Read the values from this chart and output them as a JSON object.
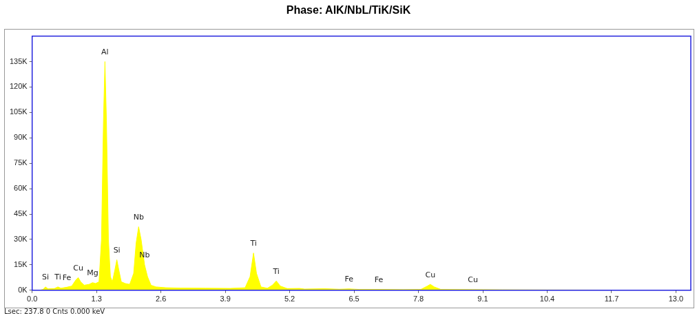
{
  "chart_data": {
    "type": "area",
    "title": "Phase: AlK/NbL/TiK/SiK",
    "color": "#ffff00",
    "x": [
      0.0,
      0.15,
      0.22,
      0.27,
      0.32,
      0.45,
      0.52,
      0.58,
      0.7,
      0.8,
      0.88,
      0.93,
      0.98,
      1.05,
      1.15,
      1.22,
      1.28,
      1.35,
      1.4,
      1.44,
      1.47,
      1.5,
      1.54,
      1.58,
      1.62,
      1.67,
      1.71,
      1.75,
      1.8,
      1.88,
      1.97,
      2.05,
      2.1,
      2.15,
      2.2,
      2.27,
      2.33,
      2.4,
      2.5,
      2.7,
      3.0,
      3.5,
      4.0,
      4.3,
      4.4,
      4.47,
      4.53,
      4.62,
      4.75,
      4.85,
      4.93,
      5.01,
      5.15,
      5.4,
      5.5,
      5.9,
      6.2,
      6.4,
      6.6,
      7.0,
      7.5,
      7.85,
      7.98,
      8.04,
      8.12,
      8.25,
      8.9,
      9.5,
      10.5,
      12.0,
      13.3
    ],
    "values": [
      0,
      0,
      500,
      2000,
      800,
      1000,
      2000,
      1200,
      1800,
      2500,
      6000,
      7500,
      5000,
      3000,
      3500,
      4500,
      4000,
      5000,
      30000,
      100000,
      135000,
      100000,
      30000,
      8000,
      5000,
      12000,
      18000,
      12000,
      5000,
      4000,
      3500,
      10000,
      28000,
      37500,
      30000,
      15000,
      8000,
      3000,
      2000,
      1500,
      1300,
      1200,
      1100,
      1500,
      8000,
      22000,
      10000,
      2000,
      1200,
      3000,
      5500,
      2500,
      1000,
      1100,
      700,
      900,
      600,
      800,
      500,
      500,
      400,
      500,
      2500,
      3500,
      2000,
      500,
      400,
      300,
      200,
      100,
      100
    ],
    "xlim": [
      0,
      13.3
    ],
    "xticks": [
      {
        "value": 0,
        "label": "0.0"
      },
      1.3,
      2.6,
      3.9,
      5.2,
      6.5,
      7.8,
      9.1,
      10.4,
      11.7,
      {
        "value": 13,
        "label": "13.0"
      }
    ],
    "ylim": [
      0,
      150000
    ],
    "yticks": [
      {
        "value": 0,
        "label": "0K"
      },
      {
        "value": 15000,
        "label": "15K"
      },
      {
        "value": 30000,
        "label": "30K"
      },
      {
        "value": 45000,
        "label": "45K"
      },
      {
        "value": 60000,
        "label": "60K"
      },
      {
        "value": 75000,
        "label": "75K"
      },
      {
        "value": 90000,
        "label": "90K"
      },
      {
        "value": 105000,
        "label": "105K"
      },
      {
        "value": 120000,
        "label": "120K"
      },
      {
        "value": 135000,
        "label": "135K"
      }
    ],
    "grid": false,
    "legend": false,
    "annotations": [
      {
        "text": "Si",
        "x": 0.27,
        "y": 2000
      },
      {
        "text": "Ti",
        "x": 0.52,
        "y": 2000
      },
      {
        "text": "Fe",
        "x": 0.7,
        "y": 1800
      },
      {
        "text": "Cu",
        "x": 0.93,
        "y": 7500
      },
      {
        "text": "Mg",
        "x": 1.22,
        "y": 4500
      },
      {
        "text": "Al",
        "x": 1.47,
        "y": 135000
      },
      {
        "text": "Si",
        "x": 1.71,
        "y": 18000
      },
      {
        "text": "Nb",
        "x": 2.15,
        "y": 37500
      },
      {
        "text": "Nb",
        "x": 2.27,
        "y": 15000
      },
      {
        "text": "Ti",
        "x": 4.47,
        "y": 22000
      },
      {
        "text": "Ti",
        "x": 4.93,
        "y": 5500
      },
      {
        "text": "Fe",
        "x": 6.4,
        "y": 800
      },
      {
        "text": "Fe",
        "x": 7.0,
        "y": 500
      },
      {
        "text": "Cu",
        "x": 8.04,
        "y": 3500
      },
      {
        "text": "Cu",
        "x": 8.9,
        "y": 400
      },
      "Lsec: 237.8 0 Cnts 0.000 keV"
    ]
  }
}
